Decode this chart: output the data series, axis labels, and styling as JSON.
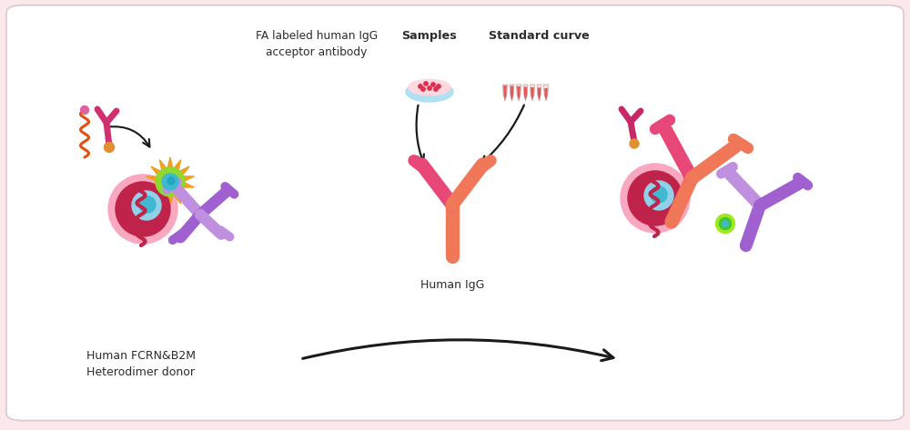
{
  "bg_outer": "#fbe8ea",
  "bg_inner": "#ffffff",
  "label_donor": "Human FCRN&B2M\nHeterodimer donor",
  "label_fa": "FA labeled human IgG\nacceptor antibody",
  "label_samples": "Samples",
  "label_std": "Standard curve",
  "label_igg": "Human IgG",
  "arrow_color": "#1a1a1a",
  "pink_light": "#f8a8c0",
  "pink_cell": "#e87090",
  "red_dark": "#c0234a",
  "purple_light": "#c090e0",
  "purple_mid": "#a060d0",
  "orange_curl": "#e05010",
  "orange_dot": "#e09030",
  "salmon1": "#f07858",
  "salmon2": "#e84878",
  "teal": "#40b8d0",
  "blue_light": "#90d0e8",
  "yellow_star": "#f0a020",
  "green_bright": "#90e020",
  "green_dark": "#206800",
  "dark_pink_igg": "#d03868",
  "text_color": "#2c2c2c",
  "tube_pink": "#f09090",
  "tube_red": "#e04040"
}
